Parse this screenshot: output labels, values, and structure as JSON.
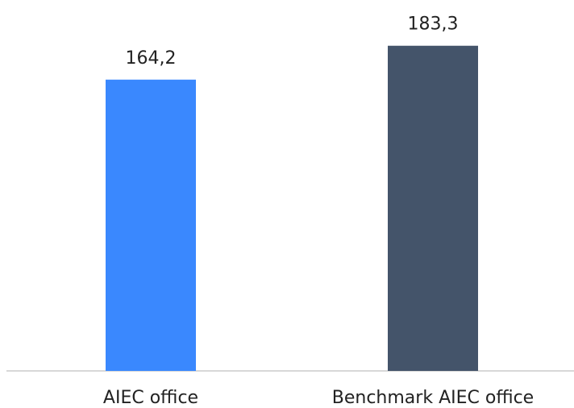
{
  "chart_data": {
    "type": "bar",
    "categories": [
      "AIEC office",
      "Benchmark AIEC office"
    ],
    "values": [
      164.2,
      183.3
    ],
    "value_labels": [
      "164,2",
      "183,3"
    ],
    "colors": [
      "#3a88fe",
      "#44546a"
    ],
    "ylim": [
      0,
      200
    ]
  }
}
